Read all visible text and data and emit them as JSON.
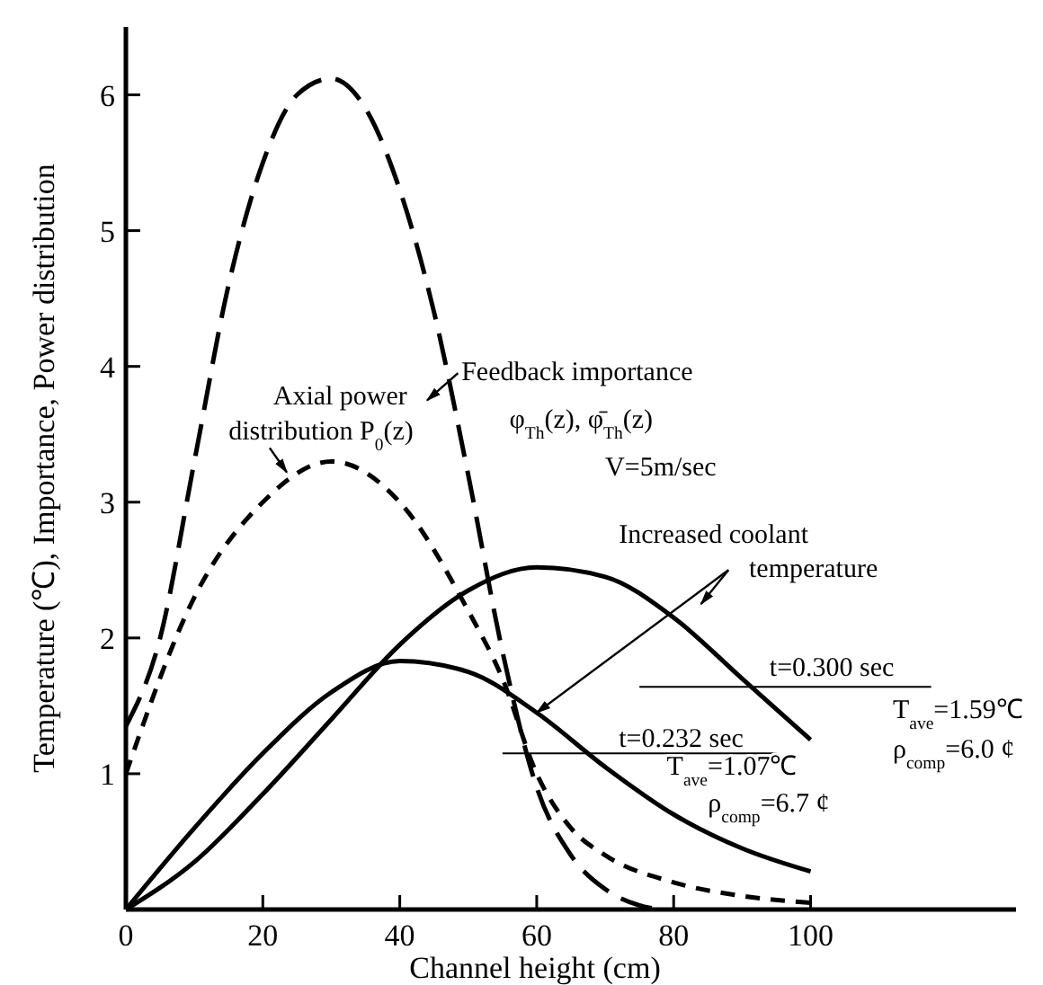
{
  "chart_data": {
    "type": "line",
    "xlabel": "Channel height (cm)",
    "ylabel": "Temperature (℃), Importance, Power distribution",
    "xlim": [
      0,
      130
    ],
    "ylim": [
      0,
      6.5
    ],
    "xticks": [
      0,
      20,
      40,
      60,
      80,
      100
    ],
    "yticks": [
      1,
      2,
      3,
      4,
      5,
      6
    ],
    "series": [
      {
        "color": "#000000",
        "line_style": "dashed",
        "x": [
          0,
          5,
          10,
          15,
          20,
          25,
          30,
          35,
          40,
          45,
          50,
          55,
          60,
          65,
          70,
          75,
          78
        ],
        "values": [
          1.35,
          2.0,
          3.3,
          4.6,
          5.5,
          6.0,
          6.12,
          5.9,
          5.3,
          4.4,
          3.2,
          1.9,
          0.9,
          0.4,
          0.15,
          0.03,
          0
        ]
      },
      {
        "color": "#000000",
        "line_style": "dotted",
        "x": [
          0,
          10,
          20,
          30,
          40,
          50,
          55,
          60,
          65,
          70,
          80,
          90,
          100
        ],
        "values": [
          1.0,
          2.3,
          3.0,
          3.3,
          3.0,
          2.2,
          1.7,
          1.0,
          0.6,
          0.4,
          0.2,
          0.1,
          0.05
        ]
      },
      {
        "color": "#000000",
        "line_style": "solid",
        "x": [
          0,
          10,
          20,
          30,
          40,
          50,
          60,
          70,
          80,
          90,
          100
        ],
        "values": [
          0,
          0.6,
          1.15,
          1.6,
          1.83,
          1.75,
          1.45,
          1.05,
          0.7,
          0.45,
          0.28
        ]
      },
      {
        "color": "#000000",
        "line_style": "solid",
        "x": [
          0,
          10,
          20,
          30,
          40,
          50,
          60,
          70,
          80,
          90,
          100
        ],
        "values": [
          0,
          0.35,
          0.85,
          1.4,
          1.95,
          2.35,
          2.52,
          2.45,
          2.15,
          1.7,
          1.25
        ]
      }
    ],
    "annotations": [
      "Feedback importance",
      "φ$_{Th}$(z), φ̄$_{Th}$(z)",
      "Axial power",
      "distribution P$_{0}$(z)",
      "V=5m/sec",
      {
        "text": "Increased coolant",
        "x": 60,
        "y": 1.45
      },
      "temperature",
      "t=0.300 sec",
      "T$_{ave}$=1.59℃",
      "ρ$_{comp}$=6.0 ¢",
      "t=0.232 sec",
      "T$_{ave}$=1.07℃",
      "ρ$_{comp}$=6.7 ¢"
    ]
  }
}
